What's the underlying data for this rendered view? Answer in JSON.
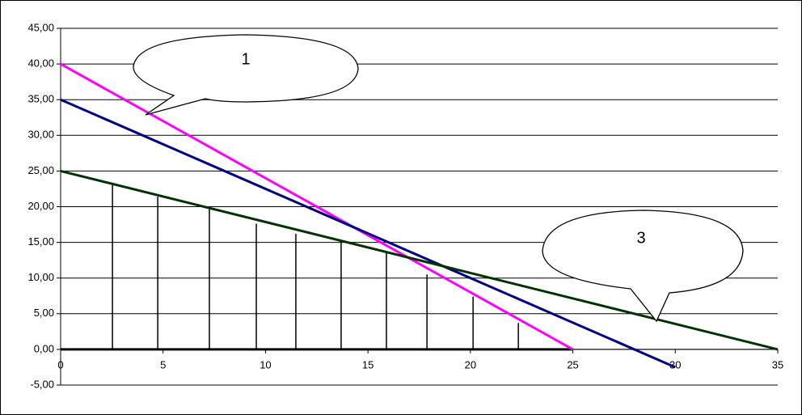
{
  "chart_data": {
    "type": "line",
    "ylim": [
      -5,
      45
    ],
    "yticks": [
      {
        "value": -5,
        "label": "-5,00"
      },
      {
        "value": 0,
        "label": "0,00"
      },
      {
        "value": 5,
        "label": "5,00"
      },
      {
        "value": 10,
        "label": "10,00"
      },
      {
        "value": 15,
        "label": "15,00"
      },
      {
        "value": 20,
        "label": "20,00"
      },
      {
        "value": 25,
        "label": "25,00"
      },
      {
        "value": 30,
        "label": "30,00"
      },
      {
        "value": 35,
        "label": "35,00"
      },
      {
        "value": 40,
        "label": "40,00"
      },
      {
        "value": 45,
        "label": "45,00"
      }
    ],
    "xlim": [
      0,
      35
    ],
    "xticks": [
      0,
      5,
      10,
      15,
      20,
      25,
      30,
      35
    ],
    "grid": true,
    "series": [
      {
        "color": "#000000",
        "x": [
          0,
          25
        ],
        "values": [
          0,
          0
        ]
      },
      {
        "color": "#ff00ff",
        "x": [
          0,
          25
        ],
        "values": [
          40,
          0
        ]
      },
      {
        "color": "#000080",
        "x": [
          0,
          30
        ],
        "values": [
          35,
          -2.5
        ]
      },
      {
        "color": "#003300",
        "x": [
          0,
          35
        ],
        "values": [
          25,
          0
        ]
      }
    ],
    "hatch": {
      "color": "#000000",
      "x": [
        2.53,
        4.74,
        7.26,
        9.55,
        11.48,
        13.69,
        15.9,
        17.88,
        20.13,
        22.34
      ],
      "values": [
        23.1,
        21.4,
        19.7,
        17.6,
        16.2,
        15.2,
        13.5,
        10.5,
        7.4,
        3.7
      ]
    },
    "annotations": [
      "1",
      "3"
    ]
  }
}
